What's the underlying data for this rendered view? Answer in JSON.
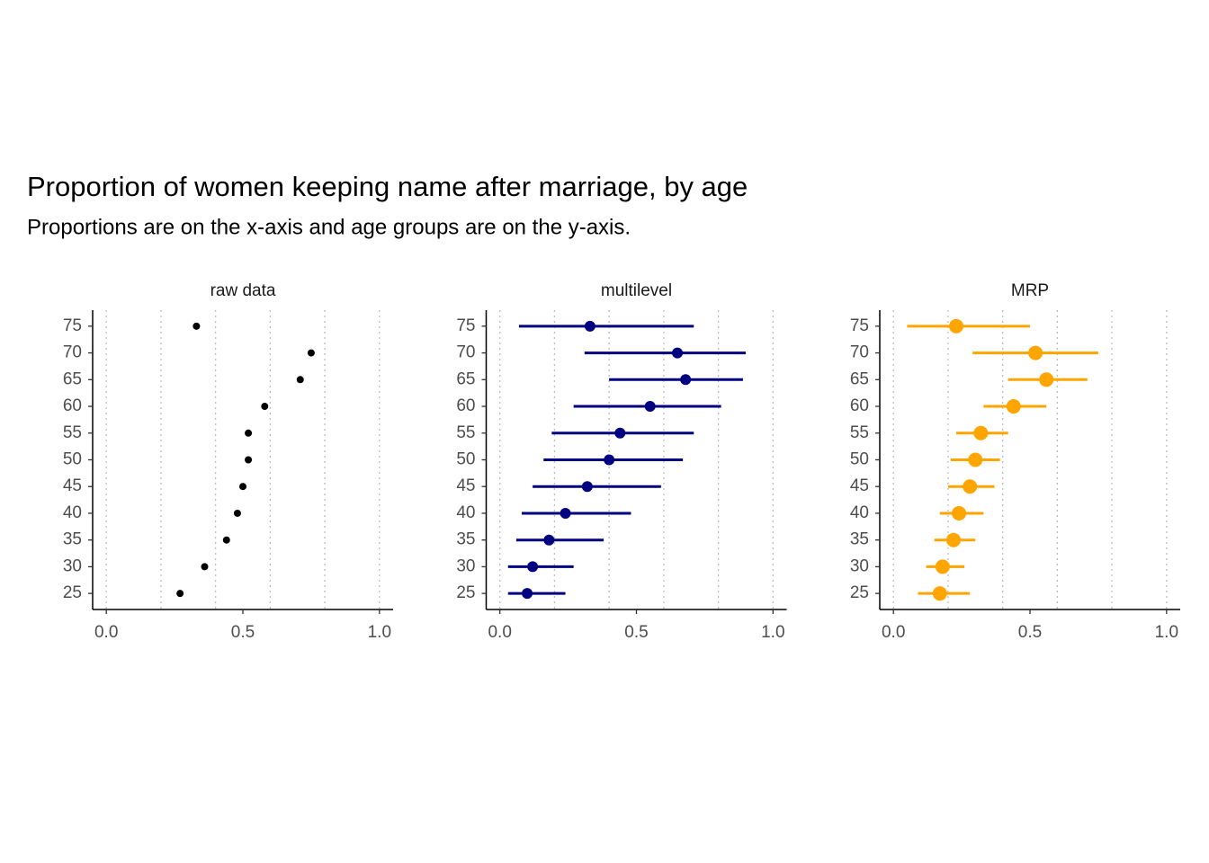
{
  "title": "Proportion of women keeping name after marriage, by age",
  "subtitle": "Proportions are on the x-axis and age groups are on the y-axis.",
  "chart_data": [
    {
      "type": "dot",
      "title": "raw data",
      "color": "#000000",
      "point_size": 4,
      "categories": [
        "25",
        "30",
        "35",
        "40",
        "45",
        "50",
        "55",
        "60",
        "65",
        "70",
        "75"
      ],
      "values": [
        0.27,
        0.36,
        0.44,
        0.48,
        0.5,
        0.52,
        0.52,
        0.58,
        0.71,
        0.75,
        0.33
      ],
      "xlim": [
        -0.05,
        1.05
      ],
      "xticks": [
        {
          "value": 0,
          "label": "0.0"
        },
        {
          "value": 0.5,
          "label": "0.5"
        },
        {
          "value": 1,
          "label": "1.0"
        }
      ],
      "xgrid": [
        0,
        0.2,
        0.4,
        0.6,
        0.8,
        1
      ]
    },
    {
      "type": "dot",
      "title": "multilevel",
      "color": "#000080",
      "point_size": 6,
      "categories": [
        "25",
        "30",
        "35",
        "40",
        "45",
        "50",
        "55",
        "60",
        "65",
        "70",
        "75"
      ],
      "values": [
        0.1,
        0.12,
        0.18,
        0.24,
        0.32,
        0.4,
        0.44,
        0.55,
        0.68,
        0.65,
        0.33
      ],
      "lower": [
        0.03,
        0.03,
        0.06,
        0.08,
        0.12,
        0.16,
        0.19,
        0.27,
        0.4,
        0.31,
        0.07
      ],
      "upper": [
        0.24,
        0.27,
        0.38,
        0.48,
        0.59,
        0.67,
        0.71,
        0.81,
        0.89,
        0.9,
        0.71
      ],
      "xlim": [
        -0.05,
        1.05
      ],
      "xticks": [
        {
          "value": 0,
          "label": "0.0"
        },
        {
          "value": 0.5,
          "label": "0.5"
        },
        {
          "value": 1,
          "label": "1.0"
        }
      ],
      "xgrid": [
        0,
        0.2,
        0.4,
        0.6,
        0.8,
        1
      ]
    },
    {
      "type": "dot",
      "title": "MRP",
      "color": "#FFA500",
      "point_size": 8,
      "categories": [
        "25",
        "30",
        "35",
        "40",
        "45",
        "50",
        "55",
        "60",
        "65",
        "70",
        "75"
      ],
      "values": [
        0.17,
        0.18,
        0.22,
        0.24,
        0.28,
        0.3,
        0.32,
        0.44,
        0.56,
        0.52,
        0.23
      ],
      "lower": [
        0.09,
        0.12,
        0.15,
        0.17,
        0.2,
        0.21,
        0.23,
        0.33,
        0.42,
        0.29,
        0.05
      ],
      "upper": [
        0.28,
        0.26,
        0.3,
        0.33,
        0.37,
        0.39,
        0.42,
        0.56,
        0.71,
        0.75,
        0.5
      ],
      "xlim": [
        -0.05,
        1.05
      ],
      "xticks": [
        {
          "value": 0,
          "label": "0.0"
        },
        {
          "value": 0.5,
          "label": "0.5"
        },
        {
          "value": 1,
          "label": "1.0"
        }
      ],
      "xgrid": [
        0,
        0.2,
        0.4,
        0.6,
        0.8,
        1
      ]
    }
  ]
}
